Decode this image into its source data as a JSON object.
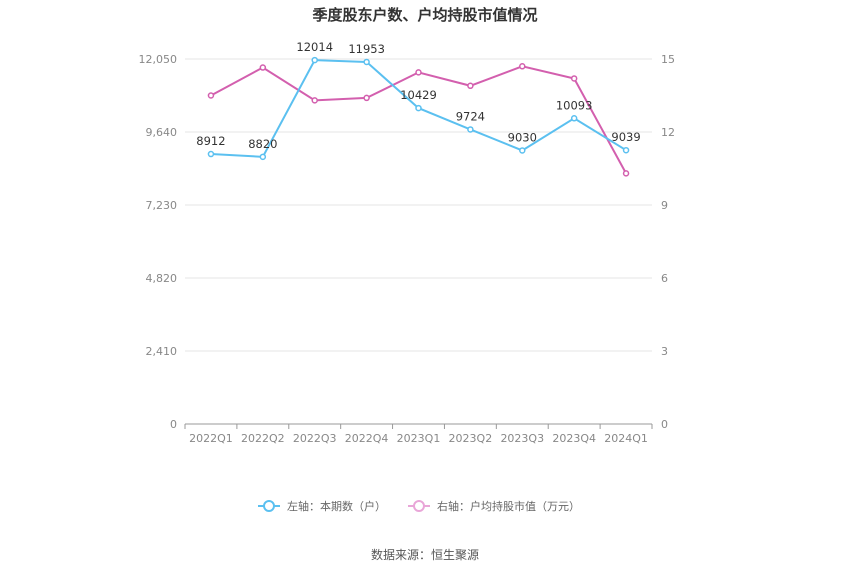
{
  "chart_data": {
    "type": "line",
    "title": "季度股东户数、户均持股市值情况",
    "categories": [
      "2022Q1",
      "2022Q2",
      "2022Q3",
      "2022Q4",
      "2023Q1",
      "2023Q2",
      "2023Q3",
      "2023Q4",
      "2024Q1"
    ],
    "series": [
      {
        "name": "左轴：本期数（户）",
        "axis": "left",
        "color": "#5bc0f0",
        "values": [
          8912,
          8820,
          12014,
          11953,
          10429,
          9724,
          9030,
          10093,
          9039
        ],
        "labels": [
          "8912",
          "8820",
          "12014",
          "11953",
          "10429",
          "9724",
          "9030",
          "10093",
          "9039"
        ]
      },
      {
        "name": "右轴：户均持股市值（万元）",
        "axis": "right",
        "color": "#d35fae",
        "values": [
          13.5,
          14.65,
          13.3,
          13.4,
          14.45,
          13.9,
          14.7,
          14.2,
          10.3
        ]
      }
    ],
    "y_left": {
      "min": 0,
      "max": 12050,
      "ticks": [
        "0",
        "2,410",
        "4,820",
        "7,230",
        "9,640",
        "12,050"
      ]
    },
    "y_right": {
      "min": 0,
      "max": 15,
      "ticks": [
        "0",
        "3",
        "6",
        "9",
        "12",
        "15"
      ]
    },
    "grid": true,
    "legend_position": "bottom",
    "source": "数据来源：恒生聚源"
  }
}
